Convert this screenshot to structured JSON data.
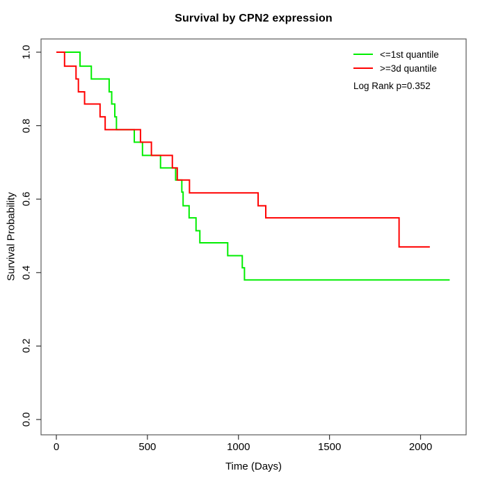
{
  "title": "Survival by CPN2 expression",
  "axes": {
    "x_label": "Time (Days)",
    "y_label": "Survival Probability",
    "x_ticks": [
      "0",
      "500",
      "1000",
      "1500",
      "2000"
    ],
    "y_ticks": [
      "0.0",
      "0.2",
      "0.4",
      "0.6",
      "0.8",
      "1.0"
    ]
  },
  "legend": {
    "items": [
      {
        "label": "<=1st quantile",
        "color": "#00ee00"
      },
      {
        "label": ">=3d quantile",
        "color": "#ff0000"
      }
    ],
    "note": "Log Rank p=0.352"
  },
  "chart_data": {
    "type": "line",
    "subtype": "kaplan-meier-step",
    "title": "Survival by CPN2 expression",
    "xlabel": "Time (Days)",
    "ylabel": "Survival Probability",
    "xlim": [
      0,
      2200
    ],
    "ylim": [
      0.0,
      1.0
    ],
    "x_tick_values": [
      0,
      500,
      1000,
      1500,
      2000
    ],
    "y_tick_values": [
      0.0,
      0.2,
      0.4,
      0.6,
      0.8,
      1.0
    ],
    "grid": false,
    "legend_position": "top-right",
    "annotation": "Log Rank p=0.352",
    "series": [
      {
        "name": "<=1st quantile",
        "color": "#00ee00",
        "start": [
          0,
          1.0
        ],
        "drops": [
          [
            130,
            0.962
          ],
          [
            192,
            0.927
          ],
          [
            290,
            0.892
          ],
          [
            304,
            0.859
          ],
          [
            321,
            0.824
          ],
          [
            330,
            0.789
          ],
          [
            428,
            0.755
          ],
          [
            473,
            0.719
          ],
          [
            572,
            0.685
          ],
          [
            655,
            0.652
          ],
          [
            689,
            0.619
          ],
          [
            696,
            0.582
          ],
          [
            729,
            0.549
          ],
          [
            767,
            0.514
          ],
          [
            788,
            0.481
          ],
          [
            941,
            0.446
          ],
          [
            1021,
            0.413
          ],
          [
            1033,
            0.38
          ]
        ],
        "end_time": 2160
      },
      {
        "name": ">=3d quantile",
        "color": "#ff0000",
        "start": [
          0,
          1.0
        ],
        "drops": [
          [
            45,
            0.962
          ],
          [
            108,
            0.927
          ],
          [
            121,
            0.892
          ],
          [
            155,
            0.859
          ],
          [
            240,
            0.824
          ],
          [
            268,
            0.789
          ],
          [
            462,
            0.755
          ],
          [
            522,
            0.719
          ],
          [
            637,
            0.685
          ],
          [
            664,
            0.652
          ],
          [
            731,
            0.617
          ],
          [
            1108,
            0.582
          ],
          [
            1150,
            0.549
          ],
          [
            1882,
            0.47
          ]
        ],
        "end_time": 2051
      }
    ]
  }
}
